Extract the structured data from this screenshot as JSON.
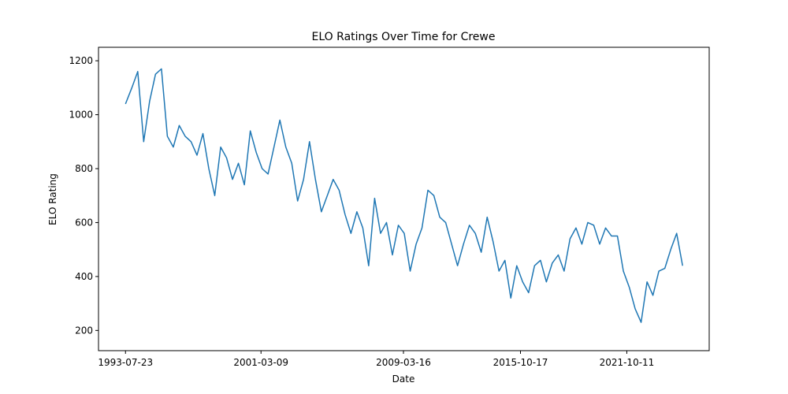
{
  "chart_data": {
    "type": "line",
    "title": "ELO Ratings Over Time for Crewe",
    "xlabel": "Date",
    "ylabel": "ELO Rating",
    "color": "#1f77b4",
    "grid": false,
    "xlim": [
      "1992-01-15",
      "2026-06-01"
    ],
    "xticks": [
      "1993-07-23",
      "2001-03-09",
      "2009-03-16",
      "2015-10-17",
      "2021-10-11"
    ],
    "ylim": [
      125,
      1250
    ],
    "yticks": [
      200,
      400,
      600,
      800,
      1000,
      1200
    ],
    "x": [
      "1993-07-23",
      "1993-12-01",
      "1994-04-01",
      "1994-08-01",
      "1994-12-01",
      "1995-04-01",
      "1995-08-01",
      "1995-12-01",
      "1996-04-01",
      "1996-08-01",
      "1996-12-01",
      "1997-04-01",
      "1997-08-01",
      "1997-12-01",
      "1998-04-01",
      "1998-08-01",
      "1998-12-01",
      "1999-04-01",
      "1999-08-01",
      "1999-12-01",
      "2000-04-01",
      "2000-08-01",
      "2000-12-01",
      "2001-04-01",
      "2001-08-01",
      "2001-12-01",
      "2002-04-01",
      "2002-08-01",
      "2002-12-01",
      "2003-04-01",
      "2003-08-01",
      "2003-12-01",
      "2004-04-01",
      "2004-08-01",
      "2004-12-01",
      "2005-04-01",
      "2005-08-01",
      "2005-12-01",
      "2006-04-01",
      "2006-08-01",
      "2006-12-01",
      "2007-04-01",
      "2007-08-01",
      "2007-12-01",
      "2008-04-01",
      "2008-08-01",
      "2008-12-01",
      "2009-04-01",
      "2009-08-01",
      "2009-12-01",
      "2010-04-01",
      "2010-08-01",
      "2010-12-01",
      "2011-04-01",
      "2011-08-01",
      "2011-12-01",
      "2012-04-01",
      "2012-08-01",
      "2012-12-01",
      "2013-04-01",
      "2013-08-01",
      "2013-12-01",
      "2014-04-01",
      "2014-08-01",
      "2014-12-01",
      "2015-04-01",
      "2015-08-01",
      "2015-12-01",
      "2016-04-01",
      "2016-08-01",
      "2016-12-01",
      "2017-04-01",
      "2017-08-01",
      "2017-12-01",
      "2018-04-01",
      "2018-08-01",
      "2018-12-01",
      "2019-04-01",
      "2019-08-01",
      "2019-12-01",
      "2020-04-01",
      "2020-08-01",
      "2020-12-01",
      "2021-04-01",
      "2021-08-01",
      "2021-12-01",
      "2022-04-01",
      "2022-08-01",
      "2022-12-01",
      "2023-04-01",
      "2023-08-01",
      "2023-12-01",
      "2024-04-01",
      "2024-08-01",
      "2024-12-01"
    ],
    "values": [
      1040,
      1100,
      1160,
      900,
      1050,
      1150,
      1170,
      920,
      880,
      960,
      920,
      900,
      850,
      930,
      800,
      700,
      880,
      840,
      760,
      820,
      740,
      940,
      860,
      800,
      780,
      880,
      980,
      880,
      820,
      680,
      760,
      900,
      760,
      640,
      700,
      760,
      720,
      630,
      560,
      640,
      580,
      440,
      690,
      560,
      600,
      480,
      590,
      560,
      420,
      520,
      580,
      720,
      700,
      620,
      600,
      520,
      440,
      520,
      590,
      560,
      490,
      620,
      530,
      420,
      460,
      320,
      440,
      380,
      340,
      440,
      460,
      380,
      450,
      480,
      420,
      540,
      580,
      520,
      600,
      590,
      520,
      580,
      550,
      550,
      420,
      360,
      280,
      230,
      380,
      330,
      420,
      430,
      500,
      560,
      440
    ]
  }
}
